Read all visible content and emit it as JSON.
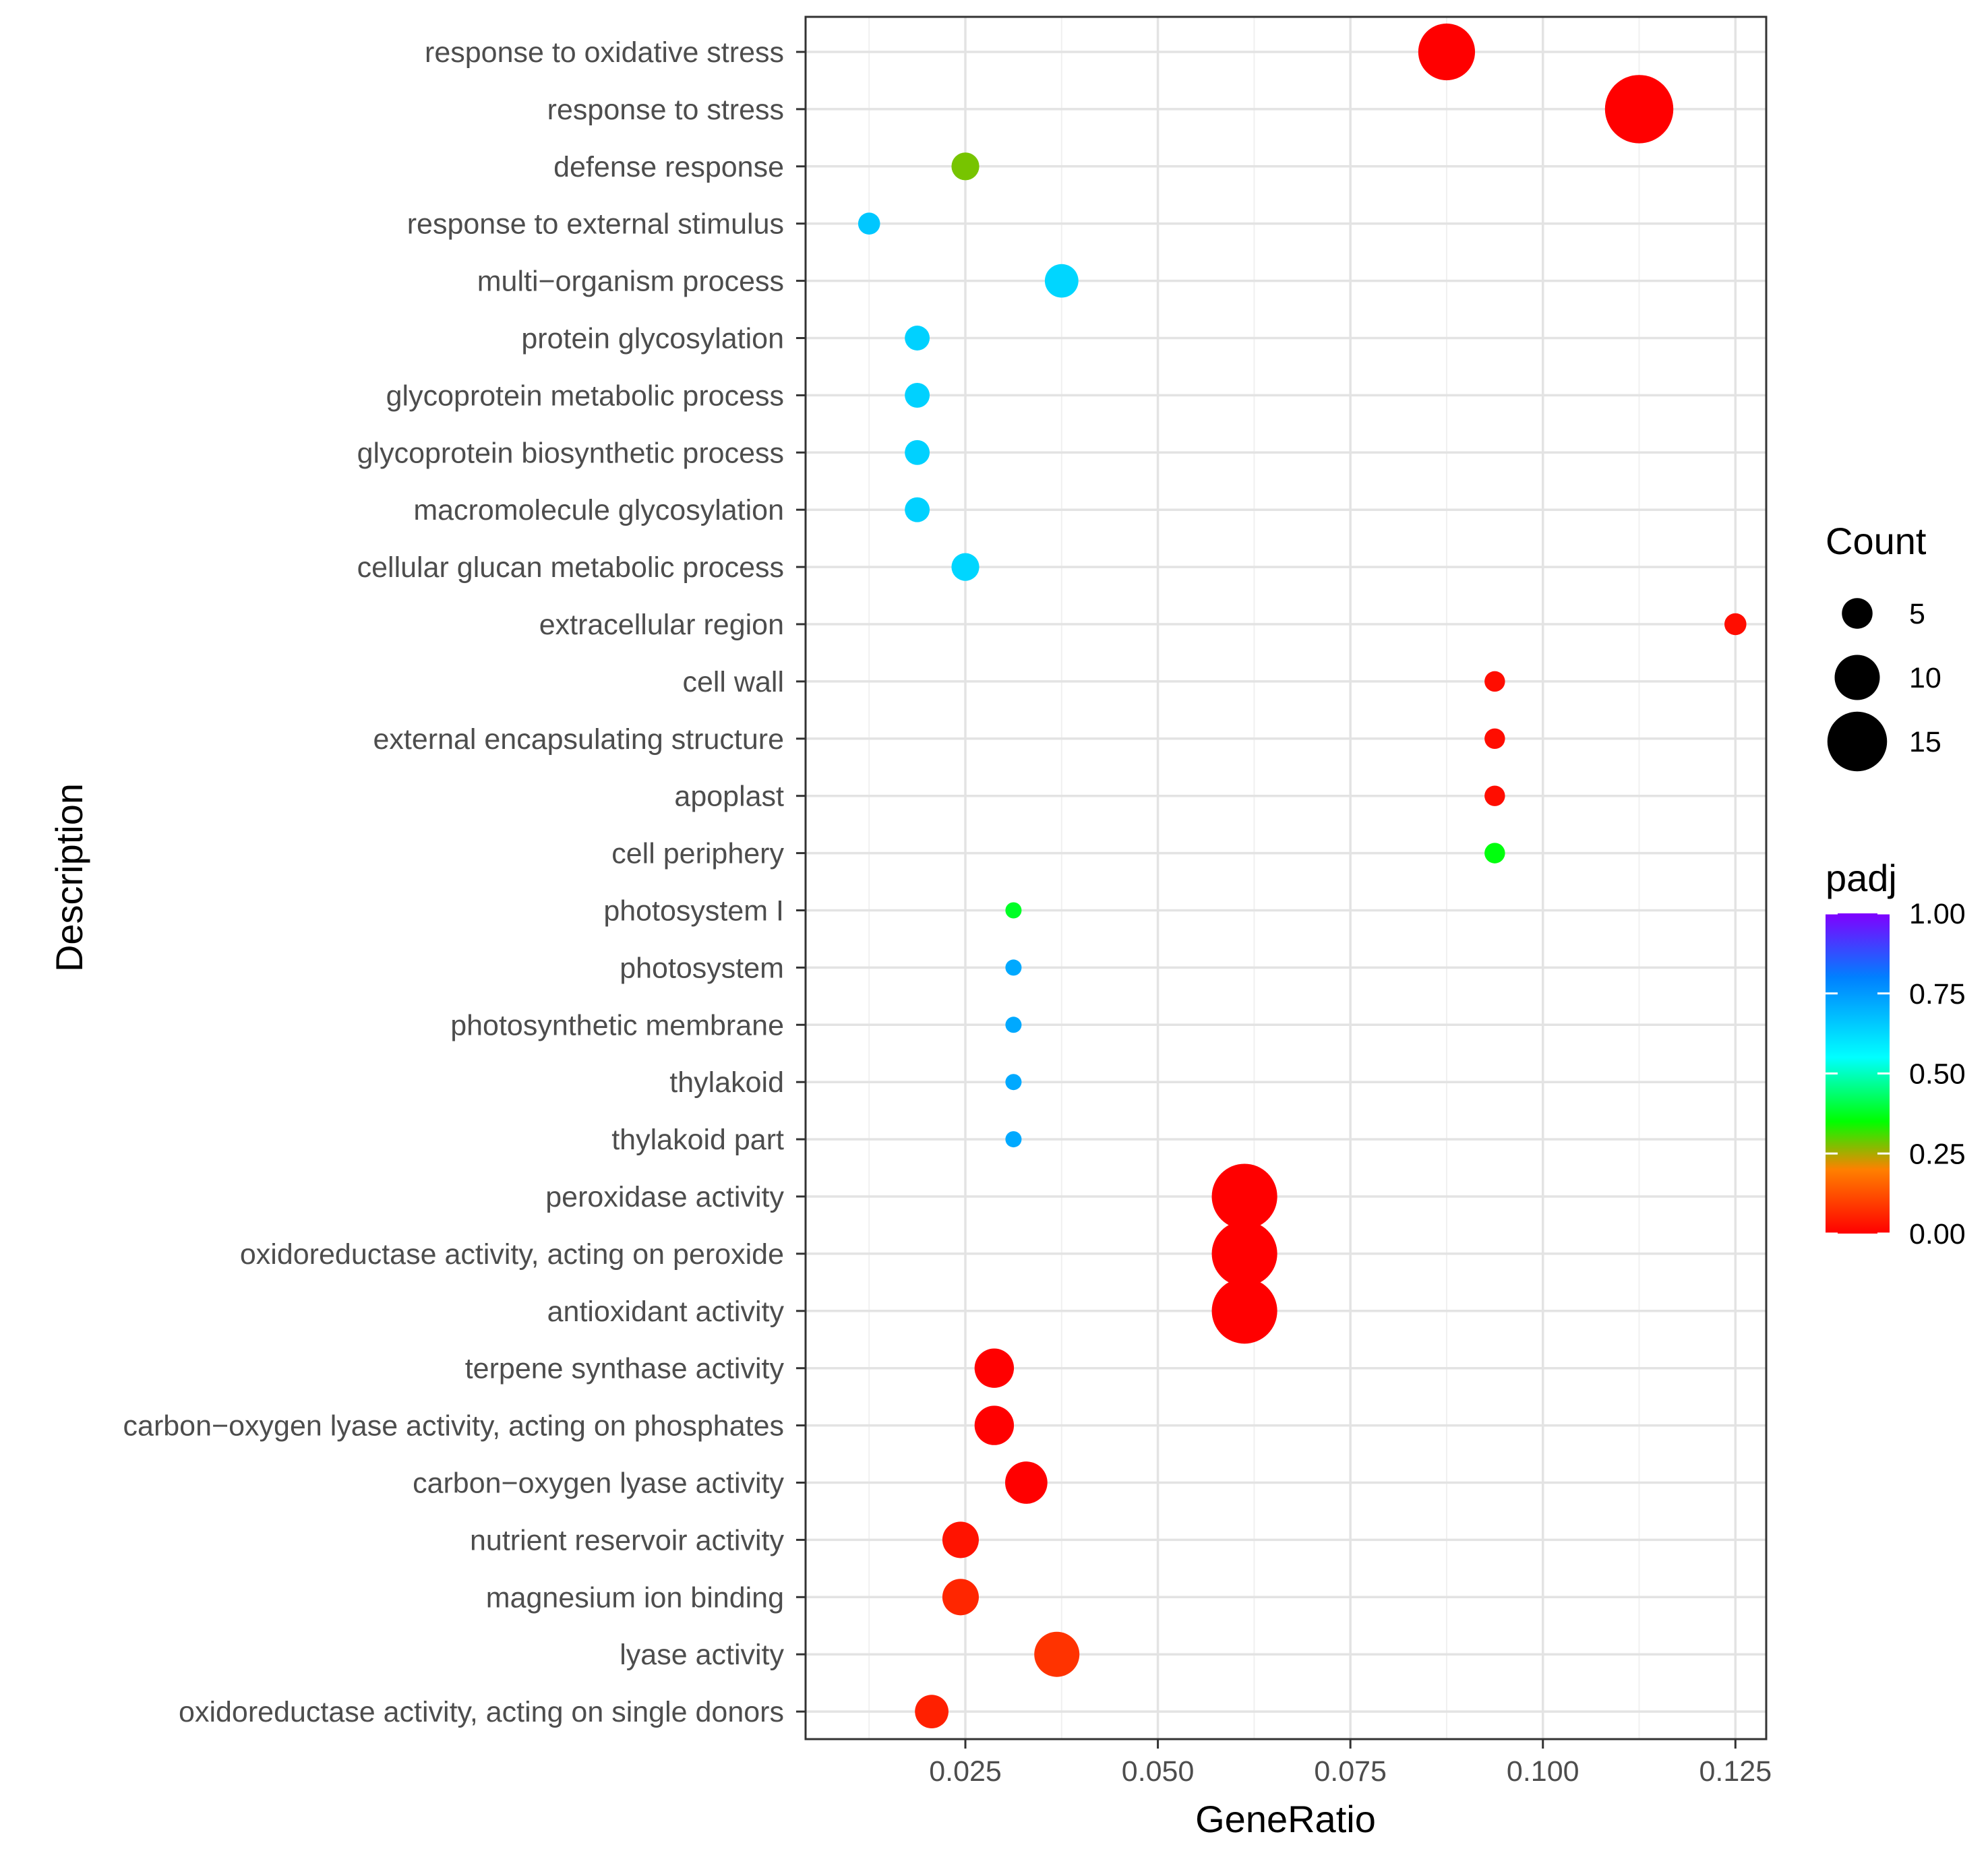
{
  "chart_data": {
    "type": "scatter",
    "title": "",
    "xlabel": "GeneRatio",
    "ylabel": "Description",
    "xlim": [
      0.00425,
      0.129
    ],
    "xticks": [
      0.025,
      0.05,
      0.075,
      0.1,
      0.125
    ],
    "xtick_labels": [
      "0.025",
      "0.050",
      "0.075",
      "0.100",
      "0.125"
    ],
    "grid": true,
    "points": [
      {
        "label": "response to oxidative stress",
        "x": 0.0875,
        "count": 14,
        "padj": 0.0
      },
      {
        "label": "response to stress",
        "x": 0.1125,
        "count": 18,
        "padj": 0.0
      },
      {
        "label": "defense response",
        "x": 0.025,
        "count": 4,
        "padj": 0.28
      },
      {
        "label": "response to external stimulus",
        "x": 0.0125,
        "count": 2,
        "padj": 0.66
      },
      {
        "label": "multi−organism process",
        "x": 0.0375,
        "count": 6,
        "padj": 0.63
      },
      {
        "label": "protein glycosylation",
        "x": 0.01875,
        "count": 3,
        "padj": 0.64
      },
      {
        "label": "glycoprotein metabolic process",
        "x": 0.01875,
        "count": 3,
        "padj": 0.64
      },
      {
        "label": "glycoprotein biosynthetic process",
        "x": 0.01875,
        "count": 3,
        "padj": 0.64
      },
      {
        "label": "macromolecule glycosylation",
        "x": 0.01875,
        "count": 3,
        "padj": 0.64
      },
      {
        "label": "cellular glucan metabolic process",
        "x": 0.025,
        "count": 4,
        "padj": 0.63
      },
      {
        "label": "extracellular region",
        "x": 0.125,
        "count": 2,
        "padj": 0.02
      },
      {
        "label": "cell wall",
        "x": 0.09375,
        "count": 1.5,
        "padj": 0.02
      },
      {
        "label": "external encapsulating structure",
        "x": 0.09375,
        "count": 1.5,
        "padj": 0.02
      },
      {
        "label": "apoplast",
        "x": 0.09375,
        "count": 1.5,
        "padj": 0.02
      },
      {
        "label": "cell periphery",
        "x": 0.09375,
        "count": 1.5,
        "padj": 0.36
      },
      {
        "label": "photosystem I",
        "x": 0.03125,
        "count": 0,
        "padj": 0.38
      },
      {
        "label": "photosystem",
        "x": 0.03125,
        "count": 0,
        "padj": 0.72
      },
      {
        "label": "photosynthetic membrane",
        "x": 0.03125,
        "count": 0,
        "padj": 0.72
      },
      {
        "label": "thylakoid",
        "x": 0.03125,
        "count": 0,
        "padj": 0.72
      },
      {
        "label": "thylakoid part",
        "x": 0.03125,
        "count": 0,
        "padj": 0.72
      },
      {
        "label": "peroxidase activity",
        "x": 0.06125,
        "count": 17,
        "padj": 0.0
      },
      {
        "label": "oxidoreductase activity, acting on peroxide",
        "x": 0.06125,
        "count": 17,
        "padj": 0.0
      },
      {
        "label": "antioxidant activity",
        "x": 0.06125,
        "count": 17,
        "padj": 0.0
      },
      {
        "label": "terpene synthase activity",
        "x": 0.02875,
        "count": 8,
        "padj": 0.0
      },
      {
        "label": "carbon−oxygen lyase activity, acting on phosphates",
        "x": 0.02875,
        "count": 8,
        "padj": 0.0
      },
      {
        "label": "carbon−oxygen lyase activity",
        "x": 0.03291,
        "count": 9,
        "padj": 0.0
      },
      {
        "label": "nutrient reservoir activity",
        "x": 0.02438,
        "count": 7,
        "padj": 0.03
      },
      {
        "label": "magnesium ion binding",
        "x": 0.02438,
        "count": 7,
        "padj": 0.06
      },
      {
        "label": "lyase activity",
        "x": 0.03688,
        "count": 10,
        "padj": 0.08
      },
      {
        "label": "oxidoreductase activity, acting on single donors",
        "x": 0.02063,
        "count": 6,
        "padj": 0.05
      }
    ],
    "legend_size": {
      "title": "Count",
      "entries": [
        {
          "label": "5",
          "value": 5
        },
        {
          "label": "10",
          "value": 10
        },
        {
          "label": "15",
          "value": 15
        }
      ]
    },
    "legend_color": {
      "title": "padj",
      "range": [
        0,
        1
      ],
      "ticks": [
        {
          "label": "1.00",
          "value": 1.0
        },
        {
          "label": "0.75",
          "value": 0.75
        },
        {
          "label": "0.50",
          "value": 0.5
        },
        {
          "label": "0.25",
          "value": 0.25
        },
        {
          "label": "0.00",
          "value": 0.0
        }
      ],
      "colors": [
        "#ff0000",
        "#ff8000",
        "#00ff00",
        "#00ffff",
        "#0080ff",
        "#8000ff"
      ]
    },
    "legend_placement": "right"
  }
}
